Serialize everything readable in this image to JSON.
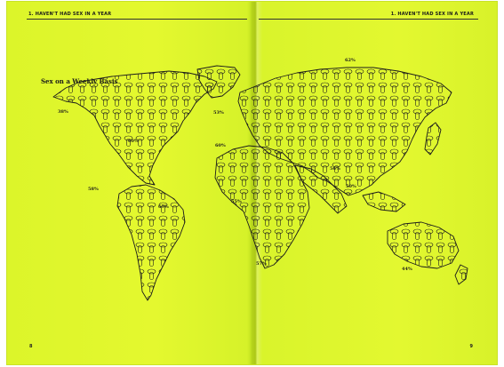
{
  "left_page": {
    "running_head": "1. HAVEN'T HAD SEX IN A YEAR",
    "folio": "8"
  },
  "right_page": {
    "running_head": "1. HAVEN'T HAD SEX IN A YEAR",
    "folio": "9"
  },
  "map": {
    "title": "Sex on a Weekly Basis",
    "labels": [
      "38%",
      "60%",
      "58%",
      "67%",
      "53%",
      "60%",
      "62%",
      "56%",
      "55%",
      "50%",
      "57%",
      "44%"
    ]
  },
  "colors": {
    "paper": "#e1f72e",
    "ink": "#1b1b1b"
  }
}
